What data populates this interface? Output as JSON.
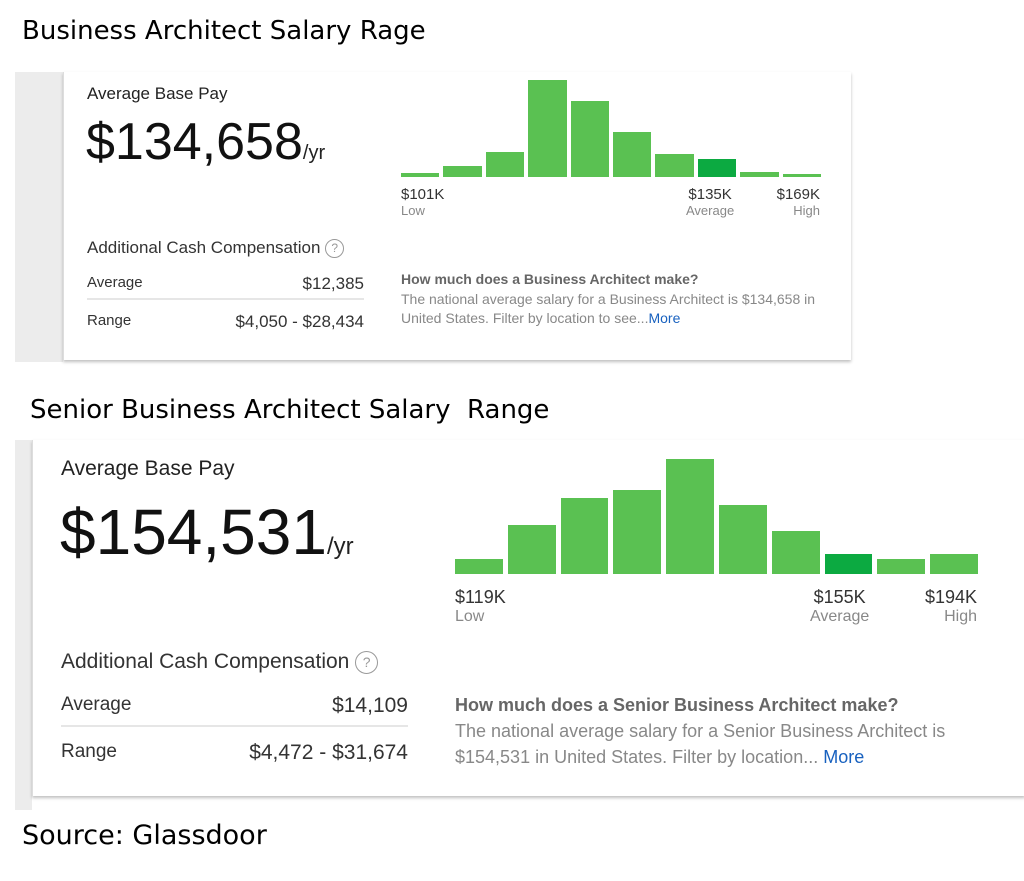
{
  "sections": [
    {
      "heading": "Business Architect Salary Rage",
      "avg_base_label": "Average Base Pay",
      "avg_base": "$134,658",
      "per": "/yr",
      "additional_label": "Additional Cash Compensation",
      "help": "?",
      "rows": [
        {
          "label": "Average",
          "value": "$12,385"
        },
        {
          "label": "Range",
          "value": "$4,050 - $28,434"
        }
      ],
      "info_title": "How much does a Business Architect make?",
      "info_text": "The national average salary for a Business Architect is $134,658 in United States. Filter by location to see...",
      "more": "More"
    },
    {
      "heading": "Senior Business Architect Salary  Range",
      "avg_base_label": "Average Base Pay",
      "avg_base": "$154,531",
      "per": "/yr",
      "additional_label": "Additional Cash Compensation",
      "help": "?",
      "rows": [
        {
          "label": "Average",
          "value": "$14,109"
        },
        {
          "label": "Range",
          "value": "$4,472 - $31,674"
        }
      ],
      "info_title": "How much does a Senior Business Architect make?",
      "info_text": "The national average salary for a Senior Business Architect is $154,531 in United States. Filter by location...",
      "more": "More"
    }
  ],
  "source": "Source: Glassdoor",
  "chart_data": [
    {
      "type": "bar",
      "relative_heights_pct": [
        4,
        11,
        26,
        100,
        78,
        46,
        24,
        19,
        5,
        3
      ],
      "highlight_index": 7,
      "tick_labels": [
        {
          "value": "$101K",
          "sub": "Low"
        },
        {
          "value": "$135K",
          "sub": "Average"
        },
        {
          "value": "$169K",
          "sub": "High"
        }
      ],
      "colors": {
        "bar": "#5ac152",
        "average": "#0caa41"
      }
    },
    {
      "type": "bar",
      "relative_heights_pct": [
        13,
        43,
        66,
        73,
        100,
        60,
        37,
        17,
        13,
        17
      ],
      "highlight_index": 7,
      "tick_labels": [
        {
          "value": "$119K",
          "sub": "Low"
        },
        {
          "value": "$155K",
          "sub": "Average"
        },
        {
          "value": "$194K",
          "sub": "High"
        }
      ],
      "colors": {
        "bar": "#5ac152",
        "average": "#0caa41"
      }
    }
  ]
}
